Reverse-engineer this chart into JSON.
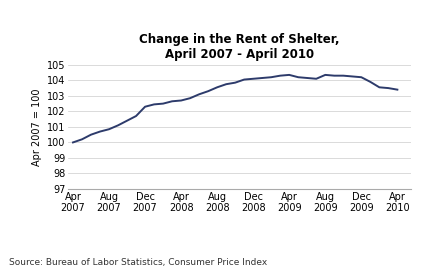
{
  "title": "Change in the Rent of Shelter,\nApril 2007 - April 2010",
  "ylabel": "Apr 2007 = 100",
  "source": "Source: Bureau of Labor Statistics, Consumer Price Index",
  "line_color": "#2d3b6b",
  "background_color": "#ffffff",
  "ylim": [
    97,
    105
  ],
  "yticks": [
    97,
    98,
    99,
    100,
    101,
    102,
    103,
    104,
    105
  ],
  "x_tick_labels": [
    "Apr\n2007",
    "Aug\n2007",
    "Dec\n2007",
    "Apr\n2008",
    "Aug\n2008",
    "Dec\n2008",
    "Apr\n2009",
    "Aug\n2009",
    "Dec\n2009",
    "Apr\n2010"
  ],
  "x_positions": [
    0,
    4,
    8,
    12,
    16,
    20,
    24,
    28,
    32,
    36
  ],
  "xlim": [
    -0.5,
    37.5
  ],
  "data": [
    [
      0,
      100.0
    ],
    [
      1,
      100.2
    ],
    [
      2,
      100.5
    ],
    [
      3,
      100.7
    ],
    [
      4,
      100.85
    ],
    [
      5,
      101.1
    ],
    [
      6,
      101.4
    ],
    [
      7,
      101.7
    ],
    [
      8,
      102.3
    ],
    [
      9,
      102.45
    ],
    [
      10,
      102.5
    ],
    [
      11,
      102.65
    ],
    [
      12,
      102.7
    ],
    [
      13,
      102.85
    ],
    [
      14,
      103.1
    ],
    [
      15,
      103.3
    ],
    [
      16,
      103.55
    ],
    [
      17,
      103.75
    ],
    [
      18,
      103.85
    ],
    [
      19,
      104.05
    ],
    [
      20,
      104.1
    ],
    [
      21,
      104.15
    ],
    [
      22,
      104.2
    ],
    [
      23,
      104.3
    ],
    [
      24,
      104.35
    ],
    [
      25,
      104.2
    ],
    [
      26,
      104.15
    ],
    [
      27,
      104.1
    ],
    [
      28,
      104.35
    ],
    [
      29,
      104.3
    ],
    [
      30,
      104.3
    ],
    [
      31,
      104.25
    ],
    [
      32,
      104.2
    ],
    [
      33,
      103.9
    ],
    [
      34,
      103.55
    ],
    [
      35,
      103.5
    ],
    [
      36,
      103.4
    ]
  ],
  "title_fontsize": 8.5,
  "tick_fontsize": 7,
  "ylabel_fontsize": 7,
  "source_fontsize": 6.5,
  "linewidth": 1.4
}
